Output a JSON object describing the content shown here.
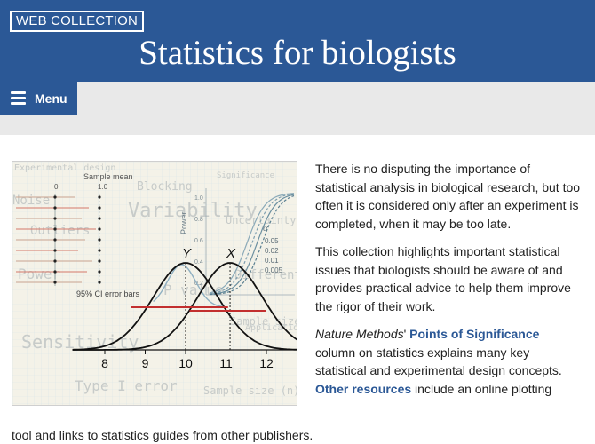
{
  "header": {
    "badge": "WEB COLLECTION",
    "title": "Statistics for biologists",
    "bg_color": "#2b5896"
  },
  "menu": {
    "label": "Menu",
    "icon": "hamburger-icon"
  },
  "figure": {
    "chart_data": {
      "type": "line",
      "x_ticks": [
        "8",
        "9",
        "10",
        "11",
        "12"
      ],
      "series": [
        {
          "name": "Y",
          "mean": 10,
          "sd": 0.8
        },
        {
          "name": "X",
          "mean": 11.1,
          "sd": 0.8
        }
      ],
      "axis_label_error_bars": "Sample mean",
      "error_bar_ticks": [
        "0",
        "1.0"
      ],
      "ci_label": "95% CI error bars",
      "power_label": "Power",
      "power_ticks": [
        "1.0",
        "0.8",
        "0.6",
        "0.4",
        "0.2"
      ],
      "alpha_label": "α",
      "alpha_values": [
        "0.05",
        "0.02",
        "0.01",
        "0.005"
      ],
      "background_words": [
        "Experimental design",
        "Significance",
        "Blocking",
        "Noise",
        "Variability",
        "Outliers",
        "Uncertainty",
        "Power",
        "Differential",
        "P value",
        "Application",
        "Sensitivity",
        "Sample size",
        "Type I error",
        "Sample size (n)"
      ]
    }
  },
  "content": {
    "para1": "There is no disputing the importance of statistical analysis in biological research, but too often it is considered only after an experiment is completed, when it may be too late.",
    "para2": "This collection highlights important statistical issues that biologists should be aware of and provides practical advice to help them improve the rigor of their work.",
    "para3": {
      "journal": "Nature Methods",
      "apostrophe": "' ",
      "link1": "Points of Significance",
      "text1": " column on statistics explains many key statistical and experimental design concepts. ",
      "link2": "Other resources",
      "text2": " include an online plotting"
    },
    "tail": "tool and links to statistics guides from other publishers."
  }
}
